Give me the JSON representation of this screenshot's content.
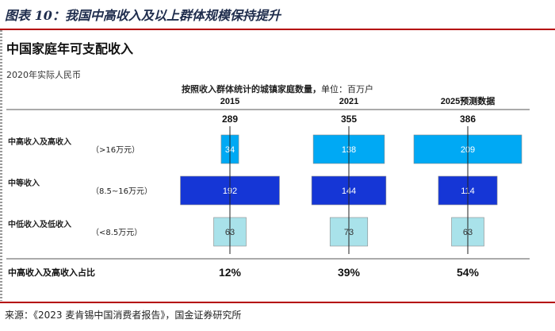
{
  "figure_title": "图表 10：我国中高收入及以上群体规模保持提升",
  "panel_title": "中国家庭年可支配收入",
  "panel_subtitle": "2020年实际人民币",
  "caption_main": "按照收入群体统计的城镇家庭数量，",
  "caption_unit": "单位：百万户",
  "source": "来源：《2023 麦肯锡中国消费者报告》，国金证券研究所",
  "colors": {
    "high": "#00a9f4",
    "mid": "#1536d6",
    "low": "#a9e2ea",
    "rule": "#b40000"
  },
  "chart_data": {
    "type": "bar",
    "unit": "百万户",
    "categories": [
      "2015",
      "2021",
      "2025预测数据"
    ],
    "totals": [
      289,
      355,
      386
    ],
    "series": [
      {
        "name": "中高收入及高收入",
        "range": "（>16万元）",
        "color": "#00a9f4",
        "values": [
          34,
          138,
          209
        ]
      },
      {
        "name": "中等收入",
        "range": "（8.5~16万元）",
        "color": "#1536d6",
        "values": [
          192,
          144,
          114
        ]
      },
      {
        "name": "中低收入及低收入",
        "range": "（<8.5万元）",
        "color": "#a9e2ea",
        "values": [
          63,
          73,
          63
        ]
      }
    ],
    "share_label": "中高收入及高收入占比",
    "shares": [
      "12%",
      "39%",
      "54%"
    ]
  }
}
